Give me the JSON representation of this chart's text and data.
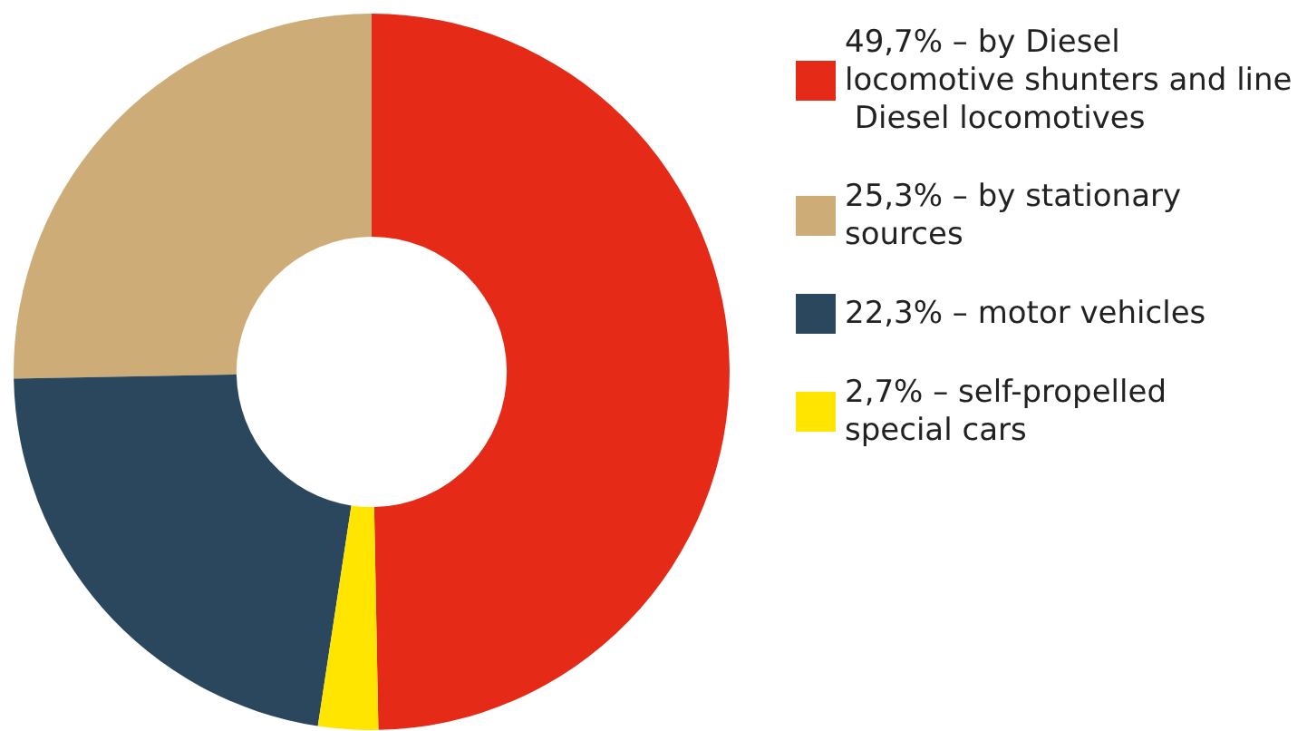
{
  "chart_data": {
    "type": "donut",
    "categories": [
      "49,7% – by Diesel locomotive shunters and line Diesel locomotives",
      "25,3% – by stationary sources",
      "22,3% – motor vehicles",
      "2,7% – self-propelled special cars"
    ],
    "values": [
      49.7,
      25.3,
      22.3,
      2.7
    ],
    "colors": [
      "#e52a17",
      "#cdac78",
      "#2a475e",
      "#ffe500"
    ],
    "legend": "top right"
  }
}
